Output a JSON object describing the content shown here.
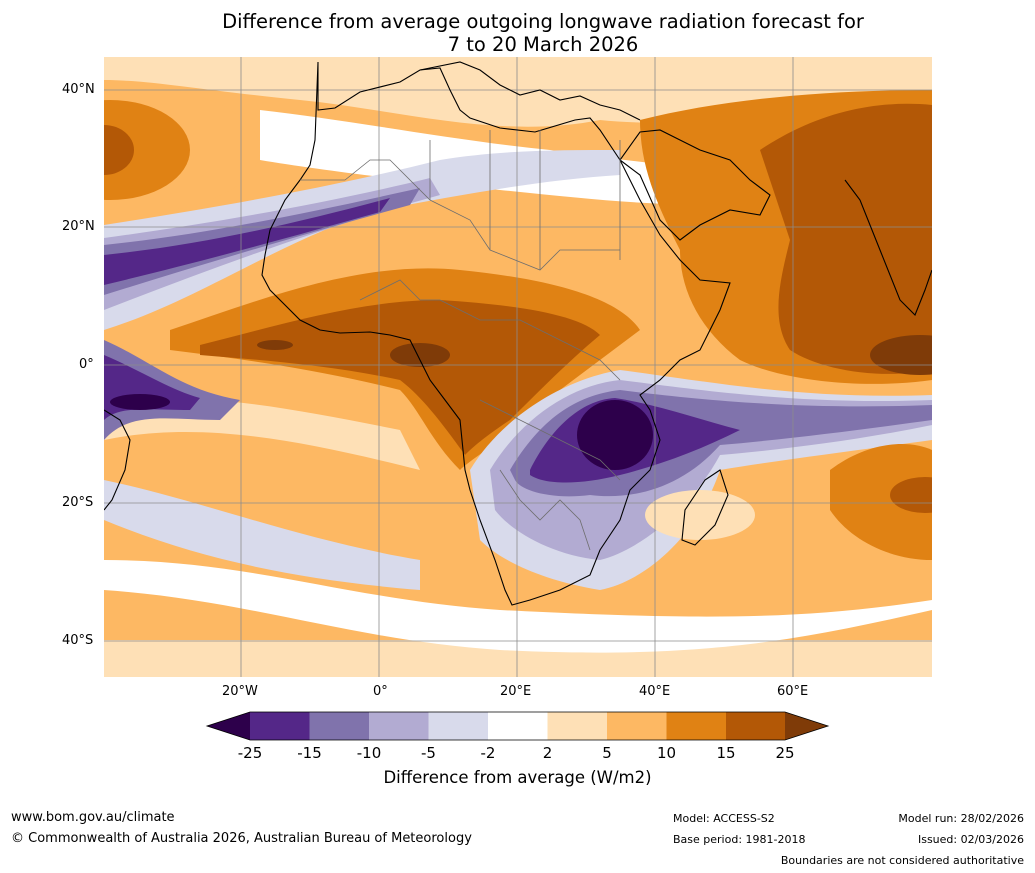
{
  "title": {
    "line1": "Difference from average outgoing longwave radiation forecast for",
    "line2": "7 to 20 March 2026"
  },
  "axes": {
    "lat_labels": [
      "40°N",
      "20°N",
      "0°",
      "20°S",
      "40°S"
    ],
    "lon_labels": [
      "20°W",
      "0°",
      "20°E",
      "40°E",
      "60°E"
    ]
  },
  "colorbar": {
    "ticks": [
      "-25",
      "-15",
      "-10",
      "-5",
      "-2",
      "2",
      "5",
      "10",
      "15",
      "25"
    ],
    "colors": [
      "#2d004b",
      "#542788",
      "#8073ac",
      "#b2abd2",
      "#d8daeb",
      "#ffffff",
      "#fee0b6",
      "#fdb863",
      "#e08214",
      "#b35806",
      "#7f3b08"
    ],
    "label": "Difference from average (W/m2)"
  },
  "footer": {
    "website": "www.bom.gov.au/climate",
    "copyright": "© Commonwealth of Australia 2026, Australian Bureau of Meteorology",
    "model": "Model: ACCESS-S2",
    "base_period": "Base period: 1981-2018",
    "model_run": "Model run: 28/02/2026",
    "issued": "Issued: 02/03/2026",
    "disclaimer": "Boundaries are not considered authoritative"
  }
}
